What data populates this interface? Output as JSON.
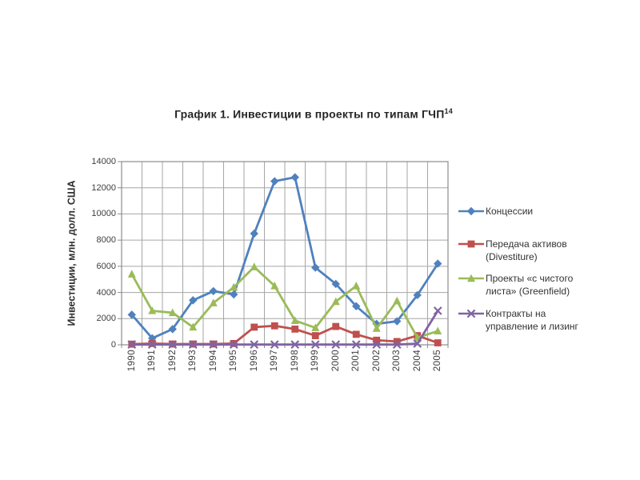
{
  "chart_data": {
    "type": "line",
    "title": "График 1. Инвестиции в проекты по типам ГЧП",
    "title_superscript": "14",
    "ylabel": "Инвестиции, млн. долл. США",
    "xlabel": "",
    "ylim": [
      0,
      14000
    ],
    "y_ticks": [
      0,
      2000,
      4000,
      6000,
      8000,
      10000,
      12000,
      14000
    ],
    "categories": [
      "1990",
      "1991",
      "1992",
      "1993",
      "1994",
      "1995",
      "1996",
      "1997",
      "1998",
      "1999",
      "2000",
      "2001",
      "2002",
      "2003",
      "2004",
      "2005"
    ],
    "grid": true,
    "legend_position": "right",
    "series": [
      {
        "name": "Концессии",
        "legend_lines": [
          "Концессии"
        ],
        "color": "#4F81BD",
        "marker": "diamond",
        "values": [
          2300,
          500,
          1200,
          3400,
          4100,
          3850,
          8500,
          12500,
          12800,
          5900,
          4650,
          2950,
          1600,
          1800,
          3800,
          6200
        ]
      },
      {
        "name": "Передача активов (Divestiture)",
        "legend_lines": [
          "Передача активов",
          "(Divestiture)"
        ],
        "color": "#C0504D",
        "marker": "square",
        "values": [
          50,
          100,
          60,
          60,
          60,
          100,
          1350,
          1450,
          1200,
          700,
          1400,
          800,
          350,
          250,
          700,
          150
        ]
      },
      {
        "name": "Проекты «с чистого листа» (Greenfield)",
        "legend_lines": [
          "Проекты «с чистого",
          "листа» (Greenfield)"
        ],
        "color": "#9BBB59",
        "marker": "triangle",
        "values": [
          5400,
          2600,
          2450,
          1350,
          3200,
          4400,
          5950,
          4500,
          1850,
          1300,
          3300,
          4500,
          1250,
          3350,
          550,
          1050
        ]
      },
      {
        "name": "Контракты на управление и лизинг",
        "legend_lines": [
          "Контракты на",
          "управление и лизинг"
        ],
        "color": "#8064A2",
        "marker": "x",
        "values": [
          20,
          20,
          20,
          20,
          20,
          20,
          20,
          20,
          20,
          20,
          20,
          20,
          20,
          20,
          90,
          2600
        ]
      }
    ],
    "styles": {
      "gridline_color": "#a6a6a6",
      "axis_color": "#8c8c8c",
      "tick_text_color": "#404040",
      "title_color": "#262626"
    }
  }
}
